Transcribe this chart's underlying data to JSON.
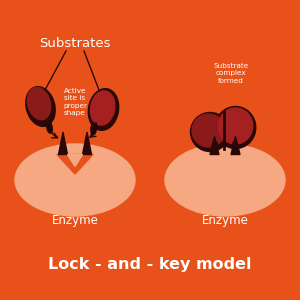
{
  "bg_color": "#E8521A",
  "enzyme_color": "#F5A882",
  "substrate_color": "#8B1A1A",
  "substrate_color2": "#A52020",
  "dark_stem_color": "#2A0808",
  "title": "Lock - and - key model",
  "title_fontsize": 11.5,
  "label_substrates": "Substrates",
  "label_active_site": "Active\nsite is\nproper\nshape",
  "label_substrate_complex": "Substrate\ncomplex\nformed",
  "label_enzyme1": "Enzyme",
  "label_enzyme2": "Enzyme",
  "text_color": "white",
  "line_color": "#1A0505"
}
